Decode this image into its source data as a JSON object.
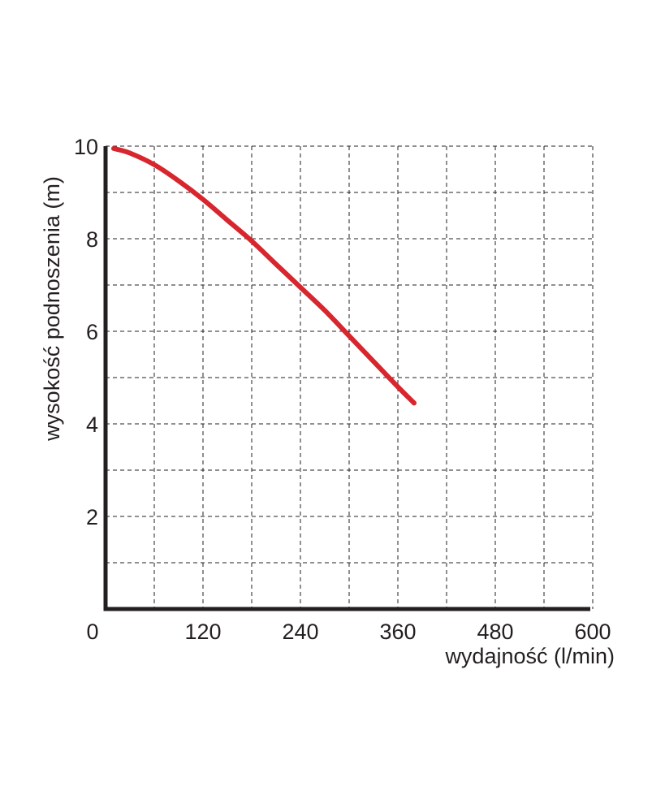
{
  "chart_data": {
    "type": "line",
    "title": "",
    "xlabel": "wydajność (l/min)",
    "ylabel": "wysokość podnoszenia (m)",
    "xlim": [
      0,
      600
    ],
    "ylim": [
      0,
      10
    ],
    "x_ticks": [
      0,
      120,
      240,
      360,
      480,
      600
    ],
    "x_tick_labels": [
      "0",
      "120",
      "240",
      "360",
      "480",
      "600"
    ],
    "y_ticks": [
      2,
      4,
      6,
      8,
      10
    ],
    "y_tick_labels": [
      "2",
      "4",
      "6",
      "8",
      "10"
    ],
    "x_grid": [
      60,
      120,
      180,
      240,
      300,
      360,
      420,
      480,
      540,
      600
    ],
    "y_grid": [
      1,
      2,
      3,
      4,
      5,
      6,
      7,
      8,
      9,
      10
    ],
    "grid": true,
    "line_color": "#d7262e",
    "series": [
      {
        "x": [
          10,
          30,
          60,
          90,
          120,
          150,
          180,
          210,
          240,
          270,
          300,
          330,
          360,
          380
        ],
        "y": [
          9.95,
          9.85,
          9.6,
          9.25,
          8.85,
          8.4,
          7.95,
          7.45,
          6.95,
          6.45,
          5.9,
          5.35,
          4.8,
          4.45
        ]
      }
    ]
  }
}
